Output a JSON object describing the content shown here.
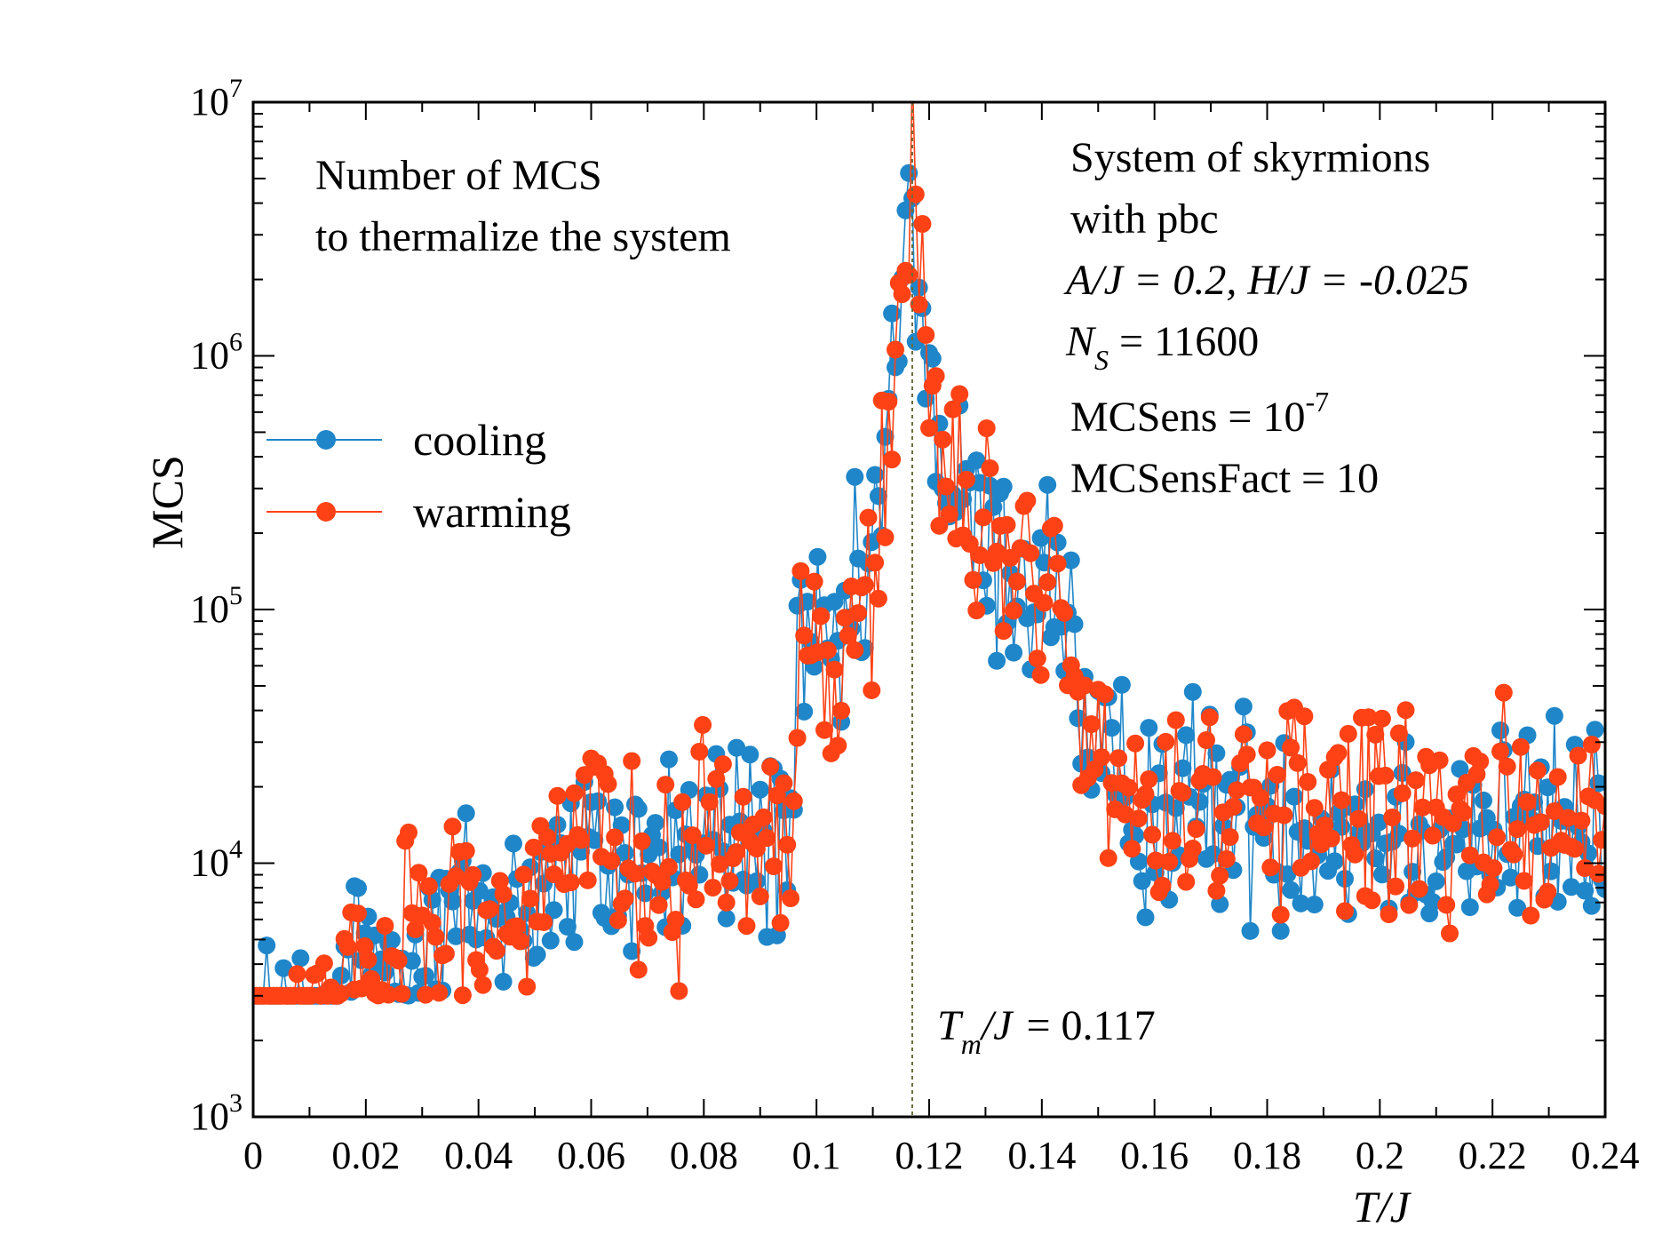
{
  "chart_data": {
    "type": "scatter",
    "title": "",
    "xlabel": "T/J",
    "ylabel": "MCS",
    "xlim": [
      0,
      0.24
    ],
    "ylim_log10": [
      3,
      7
    ],
    "y_scale": "log",
    "x_ticks": [
      "0",
      "0.02",
      "0.04",
      "0.06",
      "0.08",
      "0.1",
      "0.12",
      "0.14",
      "0.16",
      "0.18",
      "0.2",
      "0.22",
      "0.24"
    ],
    "y_tick_exponents": [
      "3",
      "4",
      "5",
      "6",
      "7"
    ],
    "y_tick_base": "10",
    "legend_position": "left-middle",
    "legend": [
      {
        "name": "cooling",
        "color": "#1f86c9"
      },
      {
        "name": "warming",
        "color": "#ff4215"
      }
    ],
    "transition": {
      "x": 0.117,
      "label": "= 0.117",
      "symbol_main": "T",
      "symbol_sub": "m",
      "symbol_rest": "/J"
    },
    "notes": {
      "left_line1": "Number of  MCS",
      "left_line2": "to thermalize the system",
      "right_line1": "System of skyrmions",
      "right_line2": "with pbc",
      "right_line3": "A/J  = 0.2,  H/J  = -0.025",
      "right_line4_main": "N",
      "right_line4_sub": "S",
      "right_line4_rest": " = 11600",
      "right_line5": "MCSens = 10",
      "right_line5_exp": "-7",
      "right_line6": "MCSensFact = 10"
    },
    "series_profile": [
      {
        "x": 0.0,
        "log_mcs": 3.48
      },
      {
        "x": 0.01,
        "log_mcs": 3.52
      },
      {
        "x": 0.02,
        "log_mcs": 3.62
      },
      {
        "x": 0.04,
        "log_mcs": 3.82
      },
      {
        "x": 0.06,
        "log_mcs": 3.98
      },
      {
        "x": 0.08,
        "log_mcs": 4.08
      },
      {
        "x": 0.095,
        "log_mcs": 4.12
      },
      {
        "x": 0.097,
        "log_mcs": 4.75
      },
      {
        "x": 0.105,
        "log_mcs": 4.82
      },
      {
        "x": 0.11,
        "log_mcs": 5.2
      },
      {
        "x": 0.117,
        "log_mcs": 6.55
      },
      {
        "x": 0.122,
        "log_mcs": 5.55
      },
      {
        "x": 0.13,
        "log_mcs": 5.22
      },
      {
        "x": 0.145,
        "log_mcs": 5.05
      },
      {
        "x": 0.148,
        "log_mcs": 4.3
      },
      {
        "x": 0.17,
        "log_mcs": 4.22
      },
      {
        "x": 0.2,
        "log_mcs": 4.15
      },
      {
        "x": 0.24,
        "log_mcs": 4.12
      }
    ],
    "series_floor_log_mcs": 3.477,
    "series_floor_until_x": 0.016,
    "series_spread_dex": 0.22,
    "point_spacing_x": 0.0006
  }
}
